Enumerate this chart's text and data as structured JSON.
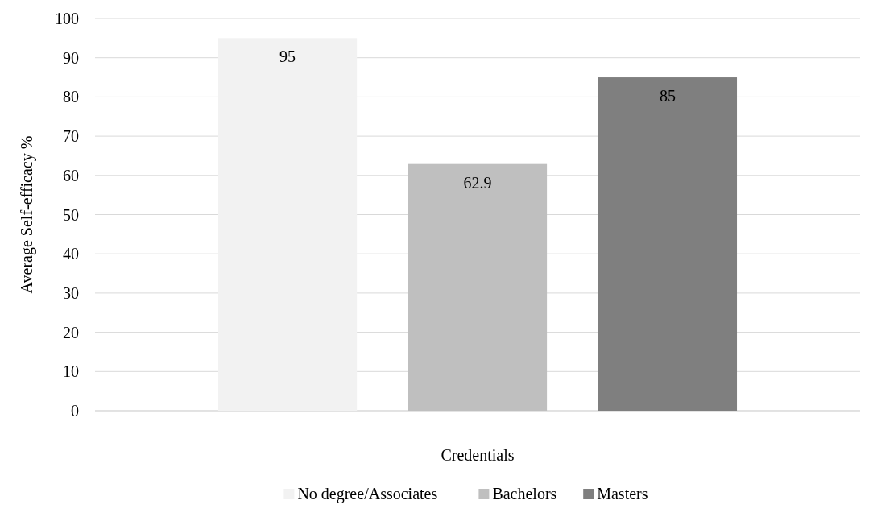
{
  "chart_data": {
    "type": "bar",
    "xlabel": "Credentials",
    "ylabel": "Average Self-efficacy %",
    "categories": [
      null
    ],
    "series": [
      {
        "name": "No degree/Associates",
        "color": "#f2f2f2",
        "values": [
          95
        ]
      },
      {
        "name": "Bachelors",
        "color": "#bfbfbf",
        "values": [
          62.9
        ]
      },
      {
        "name": "Masters",
        "color": "#7f7f7f",
        "values": [
          85
        ]
      }
    ],
    "ylim": [
      0,
      100
    ],
    "yticks": [
      0,
      10,
      20,
      30,
      40,
      50,
      60,
      70,
      80,
      90,
      100
    ],
    "grid": "y",
    "legend": "bottom",
    "data_labels": true
  }
}
